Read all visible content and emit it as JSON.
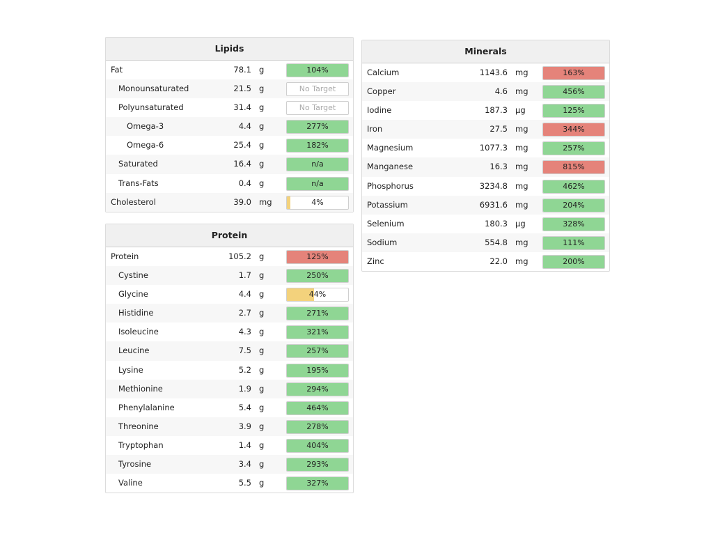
{
  "colors": {
    "green": "#8fd694",
    "red": "#e5837a",
    "yellow": "#f3d27c",
    "empty": "#ffffff"
  },
  "lipids": {
    "title": "Lipids",
    "rows": [
      {
        "name": "Fat",
        "amount": "78.1",
        "unit": "g",
        "pct": "104%",
        "level": 1.0,
        "status": "green",
        "indent": 0
      },
      {
        "name": "Monounsaturated",
        "amount": "21.5",
        "unit": "g",
        "pct": "No Target",
        "level": 0,
        "status": "empty",
        "indent": 1
      },
      {
        "name": "Polyunsaturated",
        "amount": "31.4",
        "unit": "g",
        "pct": "No Target",
        "level": 0,
        "status": "empty",
        "indent": 1
      },
      {
        "name": "Omega-3",
        "amount": "4.4",
        "unit": "g",
        "pct": "277%",
        "level": 1.0,
        "status": "green",
        "indent": 2
      },
      {
        "name": "Omega-6",
        "amount": "25.4",
        "unit": "g",
        "pct": "182%",
        "level": 1.0,
        "status": "green",
        "indent": 2
      },
      {
        "name": "Saturated",
        "amount": "16.4",
        "unit": "g",
        "pct": "n/a",
        "level": 1.0,
        "status": "green",
        "indent": 1
      },
      {
        "name": "Trans-Fats",
        "amount": "0.4",
        "unit": "g",
        "pct": "n/a",
        "level": 1.0,
        "status": "green",
        "indent": 1
      },
      {
        "name": "Cholesterol",
        "amount": "39.0",
        "unit": "mg",
        "pct": "4%",
        "level": 0.04,
        "status": "yellow",
        "indent": 0
      }
    ]
  },
  "protein": {
    "title": "Protein",
    "rows": [
      {
        "name": "Protein",
        "amount": "105.2",
        "unit": "g",
        "pct": "125%",
        "level": 1.0,
        "status": "red",
        "indent": 0
      },
      {
        "name": "Cystine",
        "amount": "1.7",
        "unit": "g",
        "pct": "250%",
        "level": 1.0,
        "status": "green",
        "indent": 1
      },
      {
        "name": "Glycine",
        "amount": "4.4",
        "unit": "g",
        "pct": "44%",
        "level": 0.44,
        "status": "yellow",
        "indent": 1
      },
      {
        "name": "Histidine",
        "amount": "2.7",
        "unit": "g",
        "pct": "271%",
        "level": 1.0,
        "status": "green",
        "indent": 1
      },
      {
        "name": "Isoleucine",
        "amount": "4.3",
        "unit": "g",
        "pct": "321%",
        "level": 1.0,
        "status": "green",
        "indent": 1
      },
      {
        "name": "Leucine",
        "amount": "7.5",
        "unit": "g",
        "pct": "257%",
        "level": 1.0,
        "status": "green",
        "indent": 1
      },
      {
        "name": "Lysine",
        "amount": "5.2",
        "unit": "g",
        "pct": "195%",
        "level": 1.0,
        "status": "green",
        "indent": 1
      },
      {
        "name": "Methionine",
        "amount": "1.9",
        "unit": "g",
        "pct": "294%",
        "level": 1.0,
        "status": "green",
        "indent": 1
      },
      {
        "name": "Phenylalanine",
        "amount": "5.4",
        "unit": "g",
        "pct": "464%",
        "level": 1.0,
        "status": "green",
        "indent": 1
      },
      {
        "name": "Threonine",
        "amount": "3.9",
        "unit": "g",
        "pct": "278%",
        "level": 1.0,
        "status": "green",
        "indent": 1
      },
      {
        "name": "Tryptophan",
        "amount": "1.4",
        "unit": "g",
        "pct": "404%",
        "level": 1.0,
        "status": "green",
        "indent": 1
      },
      {
        "name": "Tyrosine",
        "amount": "3.4",
        "unit": "g",
        "pct": "293%",
        "level": 1.0,
        "status": "green",
        "indent": 1
      },
      {
        "name": "Valine",
        "amount": "5.5",
        "unit": "g",
        "pct": "327%",
        "level": 1.0,
        "status": "green",
        "indent": 1
      }
    ]
  },
  "minerals": {
    "title": "Minerals",
    "rows": [
      {
        "name": "Calcium",
        "amount": "1143.6",
        "unit": "mg",
        "pct": "163%",
        "level": 1.0,
        "status": "red",
        "indent": 0
      },
      {
        "name": "Copper",
        "amount": "4.6",
        "unit": "mg",
        "pct": "456%",
        "level": 1.0,
        "status": "green",
        "indent": 0
      },
      {
        "name": "Iodine",
        "amount": "187.3",
        "unit": "µg",
        "pct": "125%",
        "level": 1.0,
        "status": "green",
        "indent": 0
      },
      {
        "name": "Iron",
        "amount": "27.5",
        "unit": "mg",
        "pct": "344%",
        "level": 1.0,
        "status": "red",
        "indent": 0
      },
      {
        "name": "Magnesium",
        "amount": "1077.3",
        "unit": "mg",
        "pct": "257%",
        "level": 1.0,
        "status": "green",
        "indent": 0
      },
      {
        "name": "Manganese",
        "amount": "16.3",
        "unit": "mg",
        "pct": "815%",
        "level": 1.0,
        "status": "red",
        "indent": 0
      },
      {
        "name": "Phosphorus",
        "amount": "3234.8",
        "unit": "mg",
        "pct": "462%",
        "level": 1.0,
        "status": "green",
        "indent": 0
      },
      {
        "name": "Potassium",
        "amount": "6931.6",
        "unit": "mg",
        "pct": "204%",
        "level": 1.0,
        "status": "green",
        "indent": 0
      },
      {
        "name": "Selenium",
        "amount": "180.3",
        "unit": "µg",
        "pct": "328%",
        "level": 1.0,
        "status": "green",
        "indent": 0
      },
      {
        "name": "Sodium",
        "amount": "554.8",
        "unit": "mg",
        "pct": "111%",
        "level": 1.0,
        "status": "green",
        "indent": 0
      },
      {
        "name": "Zinc",
        "amount": "22.0",
        "unit": "mg",
        "pct": "200%",
        "level": 1.0,
        "status": "green",
        "indent": 0
      }
    ]
  }
}
